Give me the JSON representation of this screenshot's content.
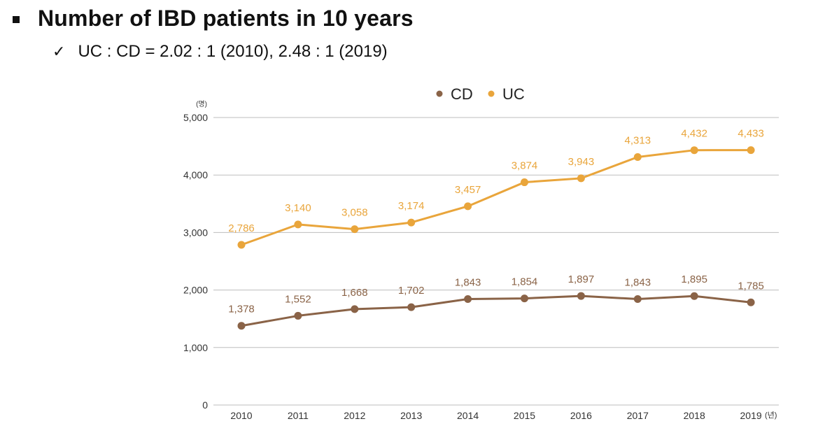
{
  "slide": {
    "title": "Number of IBD patients in 10 years",
    "subtitle": "UC : CD = 2.02 : 1 (2010), 2.48 : 1 (2019)",
    "check_icon": "✓"
  },
  "chart_data": {
    "type": "line",
    "categories": [
      "2010",
      "2011",
      "2012",
      "2013",
      "2014",
      "2015",
      "2016",
      "2017",
      "2018",
      "2019"
    ],
    "series": [
      {
        "name": "CD",
        "color": "#8a6347",
        "values": [
          1378,
          1552,
          1668,
          1702,
          1843,
          1854,
          1897,
          1843,
          1895,
          1785
        ],
        "labels": [
          "1,378",
          "1,552",
          "1,668",
          "1,702",
          "1,843",
          "1,854",
          "1,897",
          "1,843",
          "1,895",
          "1,785"
        ]
      },
      {
        "name": "UC",
        "color": "#e9a53b",
        "values": [
          2786,
          3140,
          3058,
          3174,
          3457,
          3874,
          3943,
          4313,
          4432,
          4433
        ],
        "labels": [
          "2,786",
          "3,140",
          "3,058",
          "3,174",
          "3,457",
          "3,874",
          "3,943",
          "4,313",
          "4,432",
          "4,433"
        ]
      }
    ],
    "ylim": [
      0,
      5000
    ],
    "yticks": [
      0,
      1000,
      2000,
      3000,
      4000,
      5000
    ],
    "ytick_labels": [
      "0",
      "1,000",
      "2,000",
      "3,000",
      "4,000",
      "5,000"
    ],
    "yunit": "(명)",
    "xunit": "(년)",
    "legend_position": "top",
    "grid": "horizontal"
  }
}
